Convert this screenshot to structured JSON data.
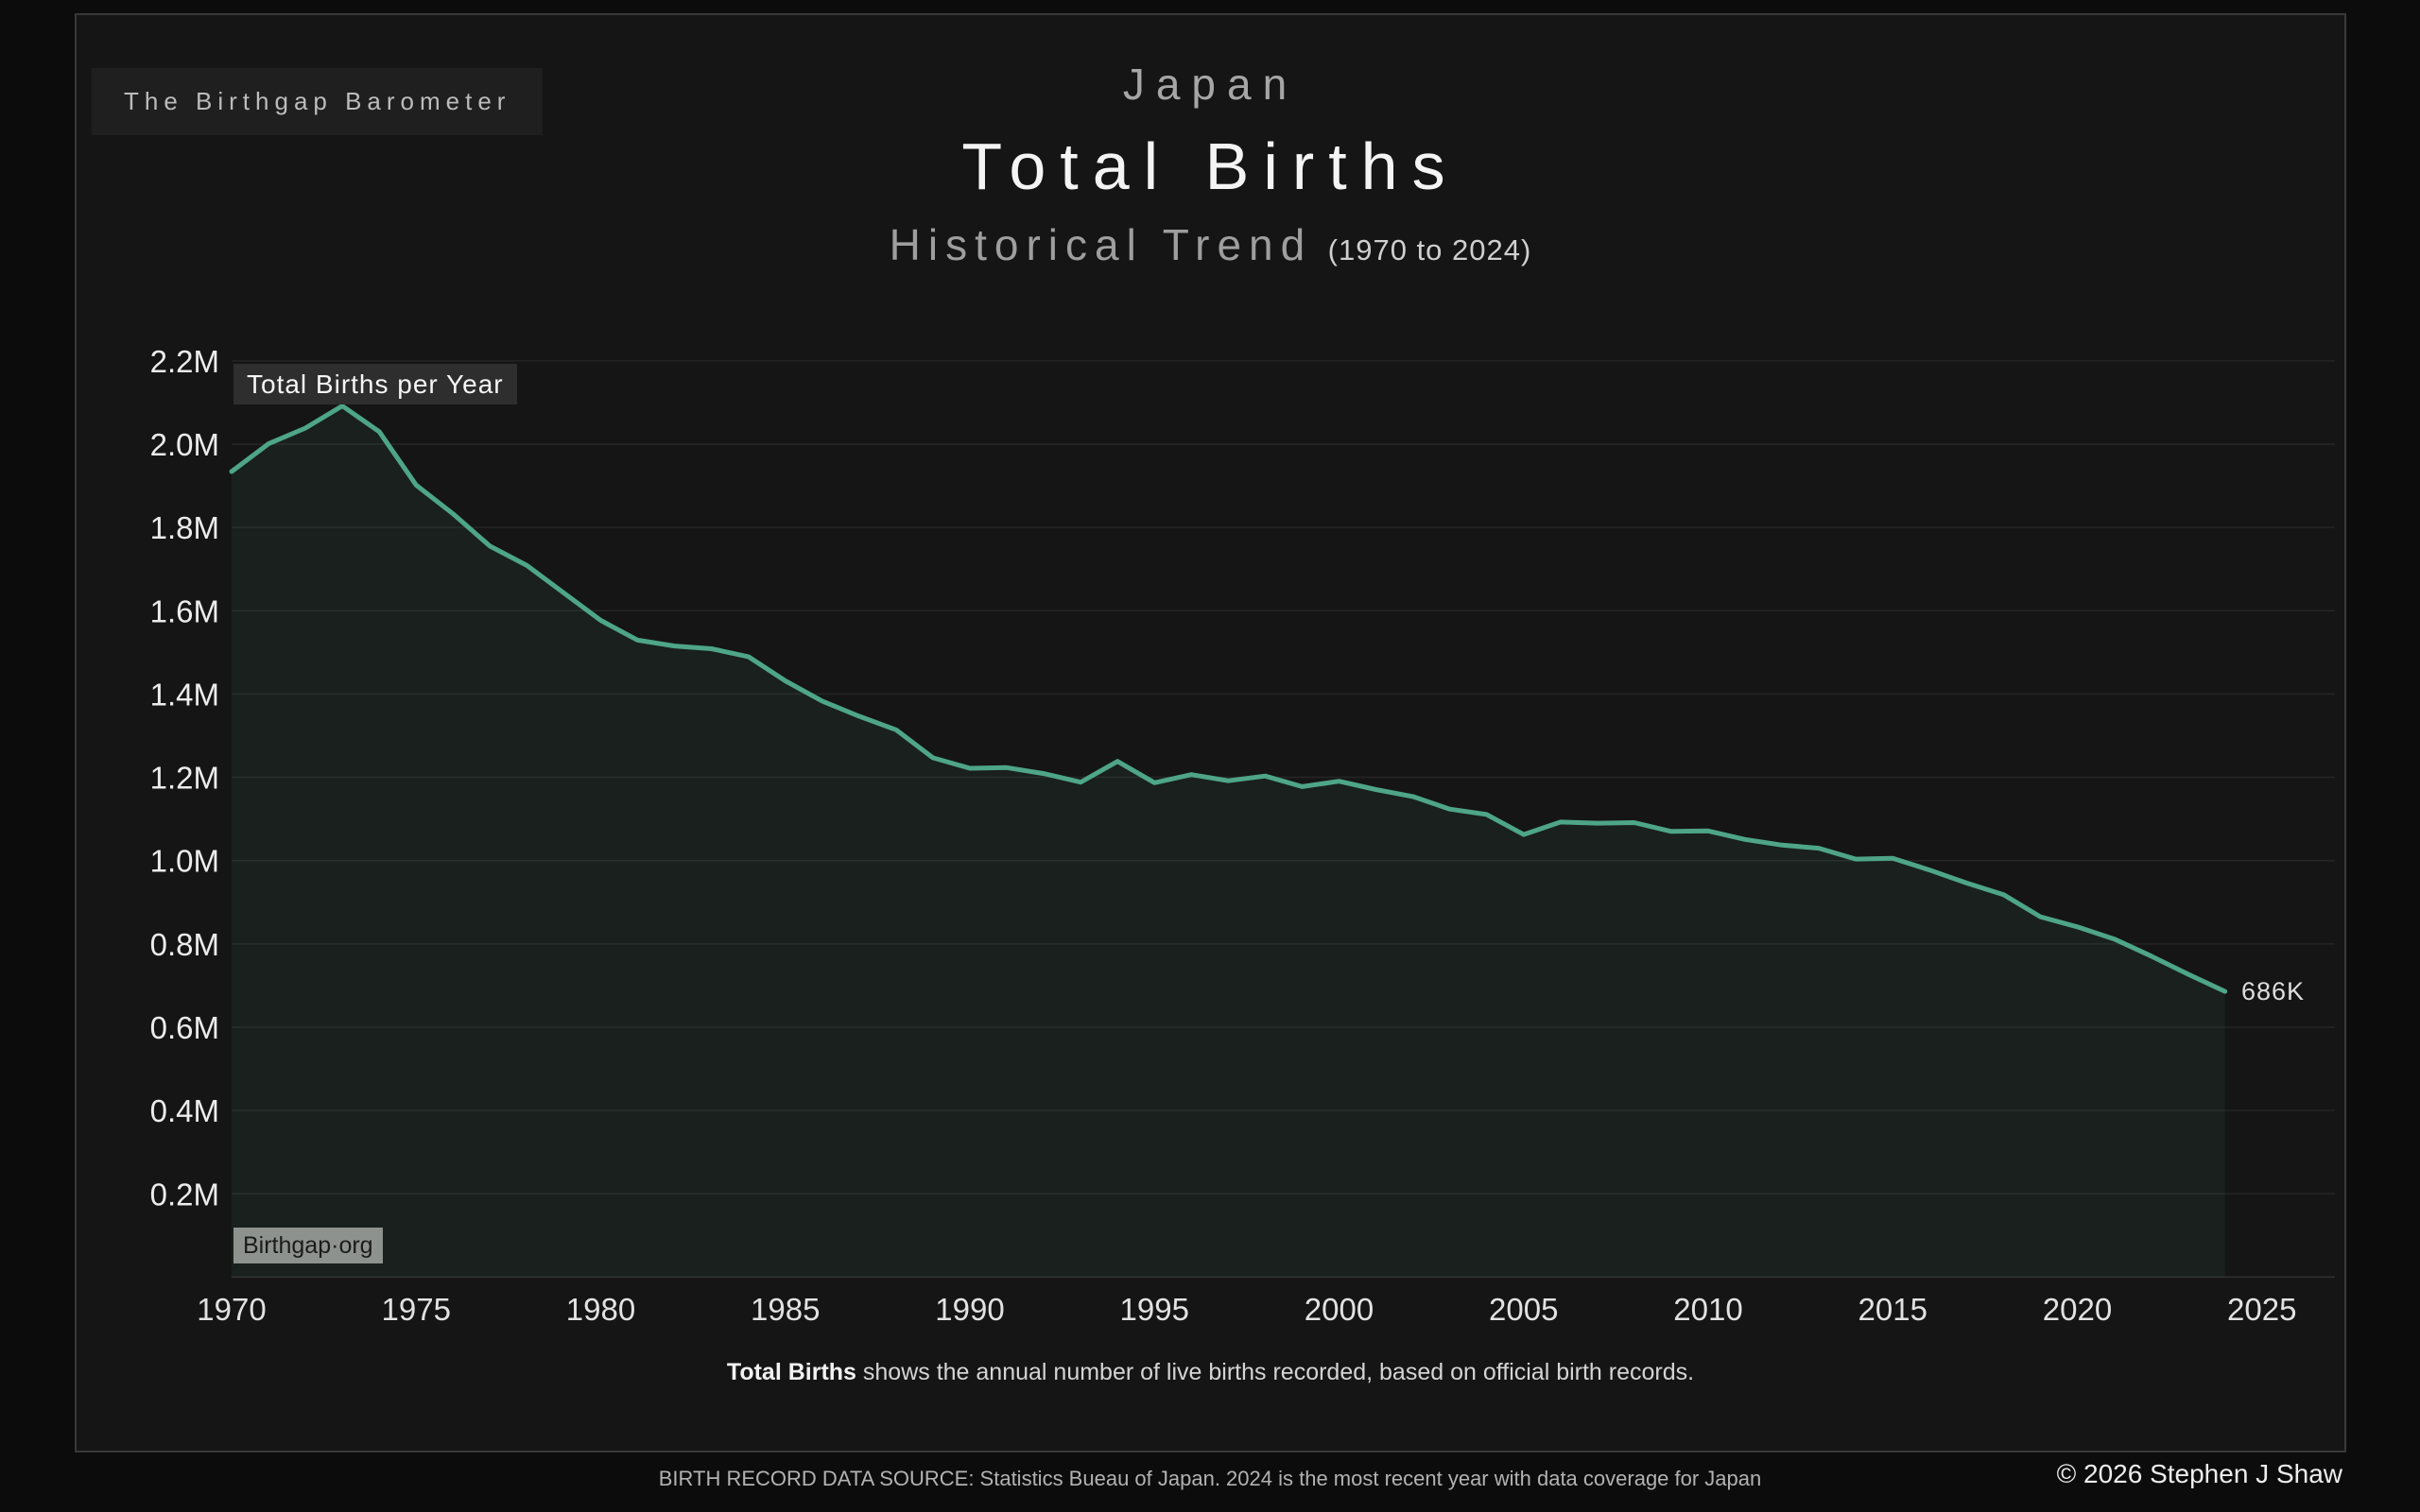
{
  "page": {
    "brand": "The Birthgap Barometer",
    "title_country": "Japan",
    "title_main": "Total Births",
    "title_sub": "Historical Trend",
    "title_range": "(1970 to 2024)",
    "caption_bold": "Total Births",
    "caption_rest": " shows the annual number of live births recorded, based on official birth records.",
    "footer_source": "BIRTH RECORD DATA SOURCE: Statistics Bueau of Japan. 2024 is the most recent year with data coverage for Japan",
    "footer_copyright": "© 2026 Stephen J Shaw"
  },
  "theme": {
    "page_bg": "#0c0c0c",
    "card_bg": "#151515",
    "card_border": "#393939",
    "line_color": "#4ea588",
    "area_fill": "rgba(78,165,136,0.08)",
    "grid_color": "rgba(255,255,255,0.07)",
    "axis_line_color": "rgba(255,255,255,0.12)"
  },
  "chart_data": {
    "type": "line",
    "title": "Total Births per Year",
    "series_badge": "Total Births per Year",
    "watermark": "Birthgap·org",
    "end_label": "686K",
    "xlabel": "",
    "ylabel": "",
    "grid": "horizontal",
    "legend_position": "none",
    "xlim": [
      1970,
      2025
    ],
    "ylim": [
      0,
      2266000
    ],
    "xticks": [
      1970,
      1975,
      1980,
      1985,
      1990,
      1995,
      2000,
      2005,
      2010,
      2015,
      2020,
      2025
    ],
    "ytick_values": [
      0.2,
      0.4,
      0.6,
      0.8,
      1.0,
      1.2,
      1.4,
      1.6,
      1.8,
      2.0,
      2.2
    ],
    "ytick_labels": [
      "0.2M",
      "0.4M",
      "0.6M",
      "0.8M",
      "1.0M",
      "1.2M",
      "1.4M",
      "1.6M",
      "1.8M",
      "2.0M",
      "2.2M"
    ],
    "x": [
      1970,
      1971,
      1972,
      1973,
      1974,
      1975,
      1976,
      1977,
      1978,
      1979,
      1980,
      1981,
      1982,
      1983,
      1984,
      1985,
      1986,
      1987,
      1988,
      1989,
      1990,
      1991,
      1992,
      1993,
      1994,
      1995,
      1996,
      1997,
      1998,
      1999,
      2000,
      2001,
      2002,
      2003,
      2004,
      2005,
      2006,
      2007,
      2008,
      2009,
      2010,
      2011,
      2012,
      2013,
      2014,
      2015,
      2016,
      2017,
      2018,
      2019,
      2020,
      2021,
      2022,
      2023,
      2024
    ],
    "values": [
      1934239,
      2000973,
      2038682,
      2091983,
      2029989,
      1901440,
      1832617,
      1755100,
      1708643,
      1642580,
      1576889,
      1529455,
      1515392,
      1508687,
      1489780,
      1431577,
      1382946,
      1346658,
      1314006,
      1246802,
      1221585,
      1223245,
      1208989,
      1188282,
      1238328,
      1187064,
      1206555,
      1191665,
      1203147,
      1177669,
      1190547,
      1170662,
      1153855,
      1123610,
      1110721,
      1062530,
      1092674,
      1089818,
      1091156,
      1070036,
      1071305,
      1050807,
      1037232,
      1029817,
      1003609,
      1005721,
      977242,
      946146,
      918400,
      865239,
      840835,
      811622,
      770759,
      727277,
      686061
    ]
  }
}
